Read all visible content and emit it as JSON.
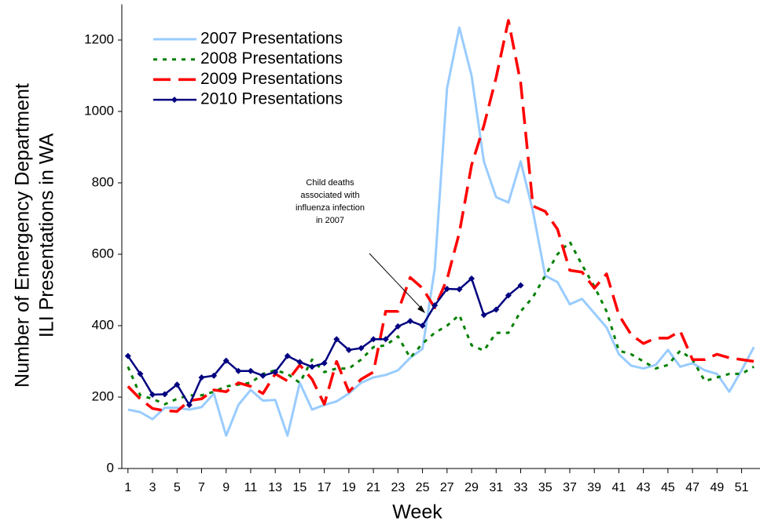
{
  "chart_data": {
    "type": "line",
    "xlabel": "Week",
    "ylabel": [
      "Number of Emergency Department",
      "ILI Presentations in WA"
    ],
    "annotation": [
      "Child deaths",
      "associated with",
      "influenza infection",
      "in 2007"
    ],
    "x": [
      1,
      2,
      3,
      4,
      5,
      6,
      7,
      8,
      9,
      10,
      11,
      12,
      13,
      14,
      15,
      16,
      17,
      18,
      19,
      20,
      21,
      22,
      23,
      24,
      25,
      26,
      27,
      28,
      29,
      30,
      31,
      32,
      33,
      34,
      35,
      36,
      37,
      38,
      39,
      40,
      41,
      42,
      43,
      44,
      45,
      46,
      47,
      48,
      49,
      50,
      51,
      52
    ],
    "xlim": [
      0.5,
      52.5
    ],
    "xticks": [
      1,
      3,
      5,
      7,
      9,
      11,
      13,
      15,
      17,
      19,
      21,
      23,
      25,
      27,
      29,
      31,
      33,
      35,
      37,
      39,
      41,
      43,
      45,
      47,
      49,
      51
    ],
    "ylim": [
      0,
      1300
    ],
    "yticks": [
      0,
      200,
      400,
      600,
      800,
      1000,
      1200
    ],
    "legend": "upper left",
    "series": [
      {
        "name": "2007 Presentations",
        "color": "#99ccff",
        "style": "solid",
        "values": [
          165,
          158,
          138,
          170,
          170,
          165,
          172,
          210,
          92,
          178,
          220,
          190,
          192,
          92,
          240,
          165,
          178,
          188,
          210,
          240,
          255,
          262,
          275,
          310,
          335,
          560,
          1065,
          1235,
          1100,
          860,
          760,
          745,
          860,
          720,
          540,
          522,
          460,
          475,
          435,
          395,
          320,
          288,
          280,
          290,
          332,
          285,
          295,
          275,
          265,
          215,
          275,
          340
        ]
      },
      {
        "name": "2008 Presentations",
        "color": "#008000",
        "style": "dotted",
        "values": [
          285,
          205,
          195,
          180,
          195,
          205,
          205,
          215,
          230,
          235,
          240,
          265,
          275,
          265,
          240,
          305,
          270,
          280,
          280,
          305,
          340,
          345,
          370,
          310,
          350,
          380,
          400,
          430,
          345,
          330,
          380,
          380,
          440,
          480,
          540,
          600,
          635,
          570,
          510,
          440,
          330,
          320,
          300,
          280,
          290,
          330,
          305,
          245,
          255,
          265,
          265,
          285
        ]
      },
      {
        "name": "2009 Presentations",
        "color": "#ff0000",
        "style": "dashed",
        "values": [
          230,
          195,
          168,
          162,
          160,
          190,
          195,
          220,
          215,
          240,
          230,
          210,
          265,
          245,
          290,
          250,
          180,
          300,
          215,
          250,
          270,
          440,
          440,
          535,
          505,
          450,
          530,
          660,
          850,
          960,
          1095,
          1255,
          1080,
          735,
          720,
          670,
          555,
          550,
          505,
          545,
          430,
          375,
          350,
          365,
          365,
          385,
          305,
          305,
          320,
          310,
          305,
          300
        ]
      },
      {
        "name": "2010 Presentations",
        "color": "#000080",
        "style": "solid",
        "marker": "diamond",
        "values": [
          315,
          265,
          207,
          208,
          235,
          178,
          255,
          260,
          302,
          273,
          273,
          260,
          270,
          315,
          298,
          285,
          295,
          362,
          332,
          337,
          362,
          362,
          398,
          413,
          400,
          457,
          503,
          502,
          532,
          430,
          445,
          485,
          513,
          null,
          null,
          null,
          null,
          null,
          null,
          null,
          null,
          null,
          null,
          null,
          null,
          null,
          null,
          null,
          null,
          null,
          null,
          null
        ]
      }
    ]
  }
}
